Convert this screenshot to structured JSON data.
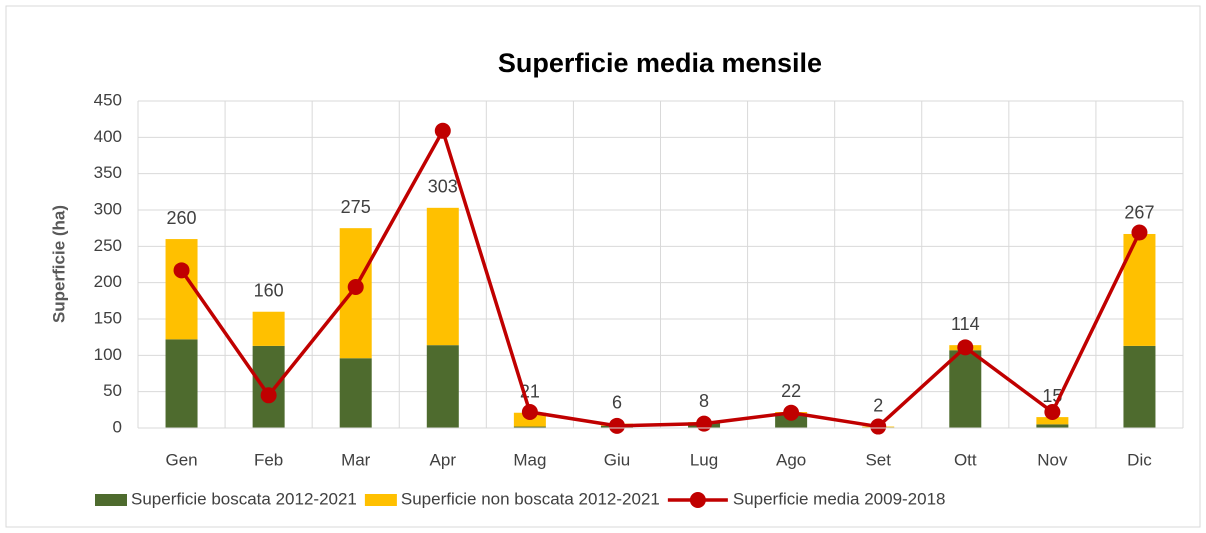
{
  "chart_data": {
    "type": "bar_line",
    "title": "Superficie media mensile",
    "y_label": "Superficie (ha)",
    "categories": [
      "Gen",
      "Feb",
      "Mar",
      "Apr",
      "Mag",
      "Giu",
      "Lug",
      "Ago",
      "Set",
      "Ott",
      "Nov",
      "Dic"
    ],
    "series": [
      {
        "name": "Superficie boscata 2012-2021",
        "color": "#4e6b2e",
        "kind": "stacked_bar",
        "values": [
          122,
          113,
          96,
          114,
          2,
          3,
          7,
          20,
          1,
          107,
          5,
          113
        ]
      },
      {
        "name": "Superficie non boscata 2012-2021",
        "color": "#ffc000",
        "kind": "stacked_bar",
        "values": [
          138,
          47,
          179,
          189,
          19,
          3,
          1,
          2,
          1,
          7,
          10,
          154
        ]
      },
      {
        "name": "Superficie media 2009-2018",
        "color": "#c00000",
        "kind": "line",
        "values": [
          217,
          45,
          194,
          409,
          22,
          3,
          6,
          21,
          2,
          111,
          22,
          269
        ]
      }
    ],
    "total_labels": [
      260,
      160,
      275,
      303,
      21,
      6,
      8,
      22,
      2,
      114,
      15,
      267
    ],
    "ylim": [
      0,
      450
    ],
    "yticks": [
      0,
      50,
      100,
      150,
      200,
      250,
      300,
      350,
      400,
      450
    ],
    "grid": true
  }
}
